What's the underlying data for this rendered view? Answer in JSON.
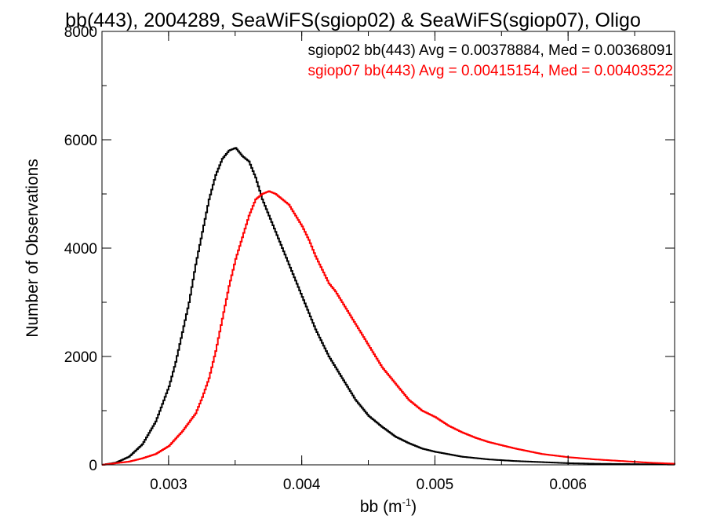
{
  "chart_data": {
    "type": "line",
    "title": "bb(443), 2004289, SeaWiFS(sgiop02) & SeaWiFS(sgiop07), Oligo",
    "xlabel_base": "bb (m",
    "xlabel_sup": "-1",
    "xlabel_tail": ")",
    "ylabel": "Number of Observations",
    "xlim": [
      0.0025,
      0.0068
    ],
    "ylim": [
      0,
      8000
    ],
    "x_ticks": [
      {
        "value": 0.003,
        "label": "0.003"
      },
      {
        "value": 0.004,
        "label": "0.004"
      },
      {
        "value": 0.005,
        "label": "0.005"
      },
      {
        "value": 0.006,
        "label": "0.006"
      }
    ],
    "y_ticks": [
      {
        "value": 0,
        "label": "0"
      },
      {
        "value": 2000,
        "label": "2000"
      },
      {
        "value": 4000,
        "label": "4000"
      },
      {
        "value": 6000,
        "label": "6000"
      },
      {
        "value": 8000,
        "label": "8000"
      }
    ],
    "legend_position": "top-right",
    "grid": false,
    "series": [
      {
        "name": "sgiop02 bb(443) Avg = 0.00378884, Med = 0.00368091",
        "color": "#000000",
        "x": [
          0.0025,
          0.0026,
          0.0027,
          0.0028,
          0.0029,
          0.003,
          0.00305,
          0.0031,
          0.00315,
          0.0032,
          0.00325,
          0.0033,
          0.00335,
          0.0034,
          0.00345,
          0.0035,
          0.00355,
          0.0036,
          0.00365,
          0.0037,
          0.00375,
          0.0038,
          0.00385,
          0.0039,
          0.00395,
          0.004,
          0.00405,
          0.0041,
          0.00415,
          0.0042,
          0.00425,
          0.0043,
          0.00435,
          0.0044,
          0.00445,
          0.0045,
          0.0046,
          0.0047,
          0.0048,
          0.0049,
          0.005,
          0.0052,
          0.0054,
          0.0056,
          0.0058,
          0.006,
          0.0062,
          0.0064,
          0.0066,
          0.0068
        ],
        "y": [
          0,
          40,
          150,
          380,
          800,
          1450,
          1900,
          2450,
          3000,
          3700,
          4300,
          4900,
          5350,
          5650,
          5800,
          5850,
          5700,
          5600,
          5300,
          4900,
          4600,
          4300,
          4000,
          3700,
          3400,
          3100,
          2800,
          2500,
          2250,
          2000,
          1800,
          1600,
          1400,
          1200,
          1050,
          900,
          700,
          520,
          400,
          300,
          240,
          150,
          100,
          70,
          50,
          30,
          20,
          15,
          10,
          5
        ]
      },
      {
        "name": "sgiop07 bb(443) Avg = 0.00415154, Med = 0.00403522",
        "color": "#ff0000",
        "x": [
          0.0025,
          0.0026,
          0.0027,
          0.0028,
          0.0029,
          0.003,
          0.0031,
          0.0032,
          0.00325,
          0.0033,
          0.00335,
          0.0034,
          0.00345,
          0.0035,
          0.00355,
          0.0036,
          0.00365,
          0.0037,
          0.00375,
          0.0038,
          0.00385,
          0.0039,
          0.00395,
          0.004,
          0.00405,
          0.0041,
          0.00415,
          0.0042,
          0.00425,
          0.0043,
          0.00435,
          0.0044,
          0.00445,
          0.0045,
          0.00455,
          0.0046,
          0.0047,
          0.0048,
          0.0049,
          0.005,
          0.0051,
          0.0052,
          0.0053,
          0.0054,
          0.0056,
          0.0058,
          0.006,
          0.0062,
          0.0064,
          0.0066,
          0.0068
        ],
        "y": [
          0,
          30,
          60,
          120,
          200,
          350,
          620,
          950,
          1250,
          1600,
          2100,
          2700,
          3300,
          3800,
          4200,
          4600,
          4900,
          5000,
          5050,
          5000,
          4900,
          4800,
          4600,
          4400,
          4150,
          3850,
          3600,
          3350,
          3200,
          3000,
          2800,
          2600,
          2400,
          2200,
          2000,
          1800,
          1500,
          1200,
          1000,
          880,
          720,
          600,
          500,
          420,
          300,
          200,
          140,
          100,
          70,
          40,
          20
        ]
      }
    ]
  }
}
